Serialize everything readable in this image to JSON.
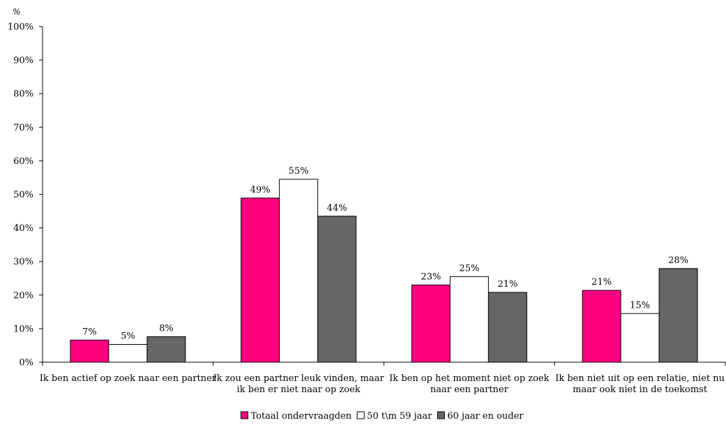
{
  "chart_data": {
    "type": "bar",
    "ylabel": "%",
    "ylim": [
      0,
      100
    ],
    "yticks": [
      "0%",
      "10%",
      "20%",
      "30%",
      "40%",
      "50%",
      "60%",
      "70%",
      "80%",
      "90%",
      "100%"
    ],
    "grid": false,
    "legend_position": "bottom-center",
    "categories": [
      [
        "Ik ben actief op zoek naar een partner"
      ],
      [
        "Ik zou een partner leuk vinden, maar",
        "ik ben er niet naar op zoek"
      ],
      [
        "Ik ben op het moment niet op zoek",
        "naar een partner"
      ],
      [
        "Ik ben niet uit op een relatie, niet nu",
        "maar ook niet in de toekomst"
      ]
    ],
    "series": [
      {
        "name": "Totaal ondervraagden",
        "color": "#ff0080",
        "values": [
          6.6,
          48.9,
          23.0,
          21.4
        ],
        "labels": [
          "7%",
          "49%",
          "23%",
          "21%"
        ]
      },
      {
        "name": "50 t\\m 59 jaar",
        "color": "#ffffff",
        "values": [
          5.3,
          54.5,
          25.5,
          14.5
        ],
        "labels": [
          "5%",
          "55%",
          "25%",
          "15%"
        ]
      },
      {
        "name": "60 jaar en ouder",
        "color": "#666666",
        "values": [
          7.6,
          43.5,
          20.8,
          27.9
        ],
        "labels": [
          "8%",
          "44%",
          "21%",
          "28%"
        ]
      }
    ]
  }
}
